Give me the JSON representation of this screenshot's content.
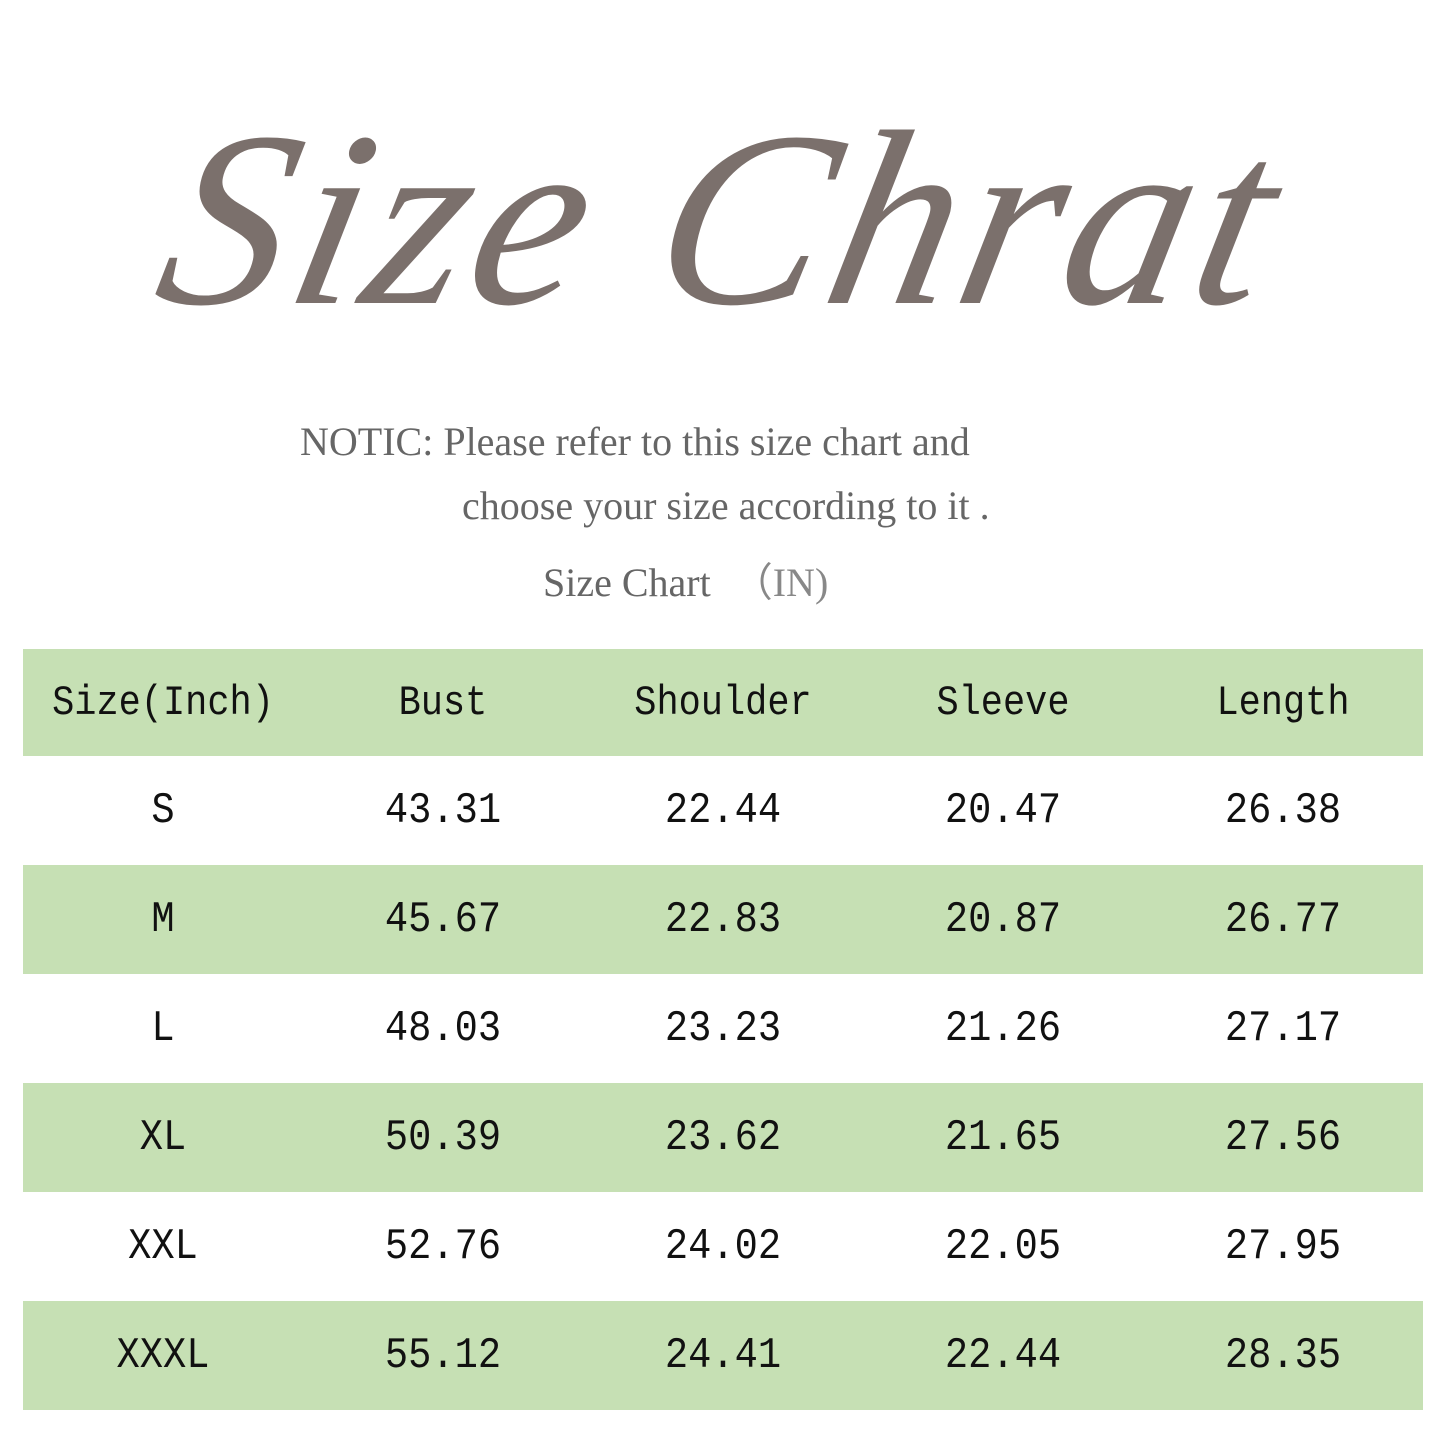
{
  "title": "Size Chrat",
  "notice": {
    "line1": "NOTIC: Please refer to this size chart and",
    "line2": "choose your size according to it .",
    "subtitle": "Size Chart",
    "unit": "（IN)"
  },
  "colors": {
    "row_green": "#c6e0b4",
    "title_gray": "#7b706c"
  },
  "table": {
    "headers": [
      "Size(Inch)",
      "Bust",
      "Shoulder",
      "Sleeve",
      "Length"
    ],
    "rows": [
      [
        "S",
        "43.31",
        "22.44",
        "20.47",
        "26.38"
      ],
      [
        "M",
        "45.67",
        "22.83",
        "20.87",
        "26.77"
      ],
      [
        "L",
        "48.03",
        "23.23",
        "21.26",
        "27.17"
      ],
      [
        "XL",
        "50.39",
        "23.62",
        "21.65",
        "27.56"
      ],
      [
        "XXL",
        "52.76",
        "24.02",
        "22.05",
        "27.95"
      ],
      [
        "XXXL",
        "55.12",
        "24.41",
        "22.44",
        "28.35"
      ]
    ]
  }
}
